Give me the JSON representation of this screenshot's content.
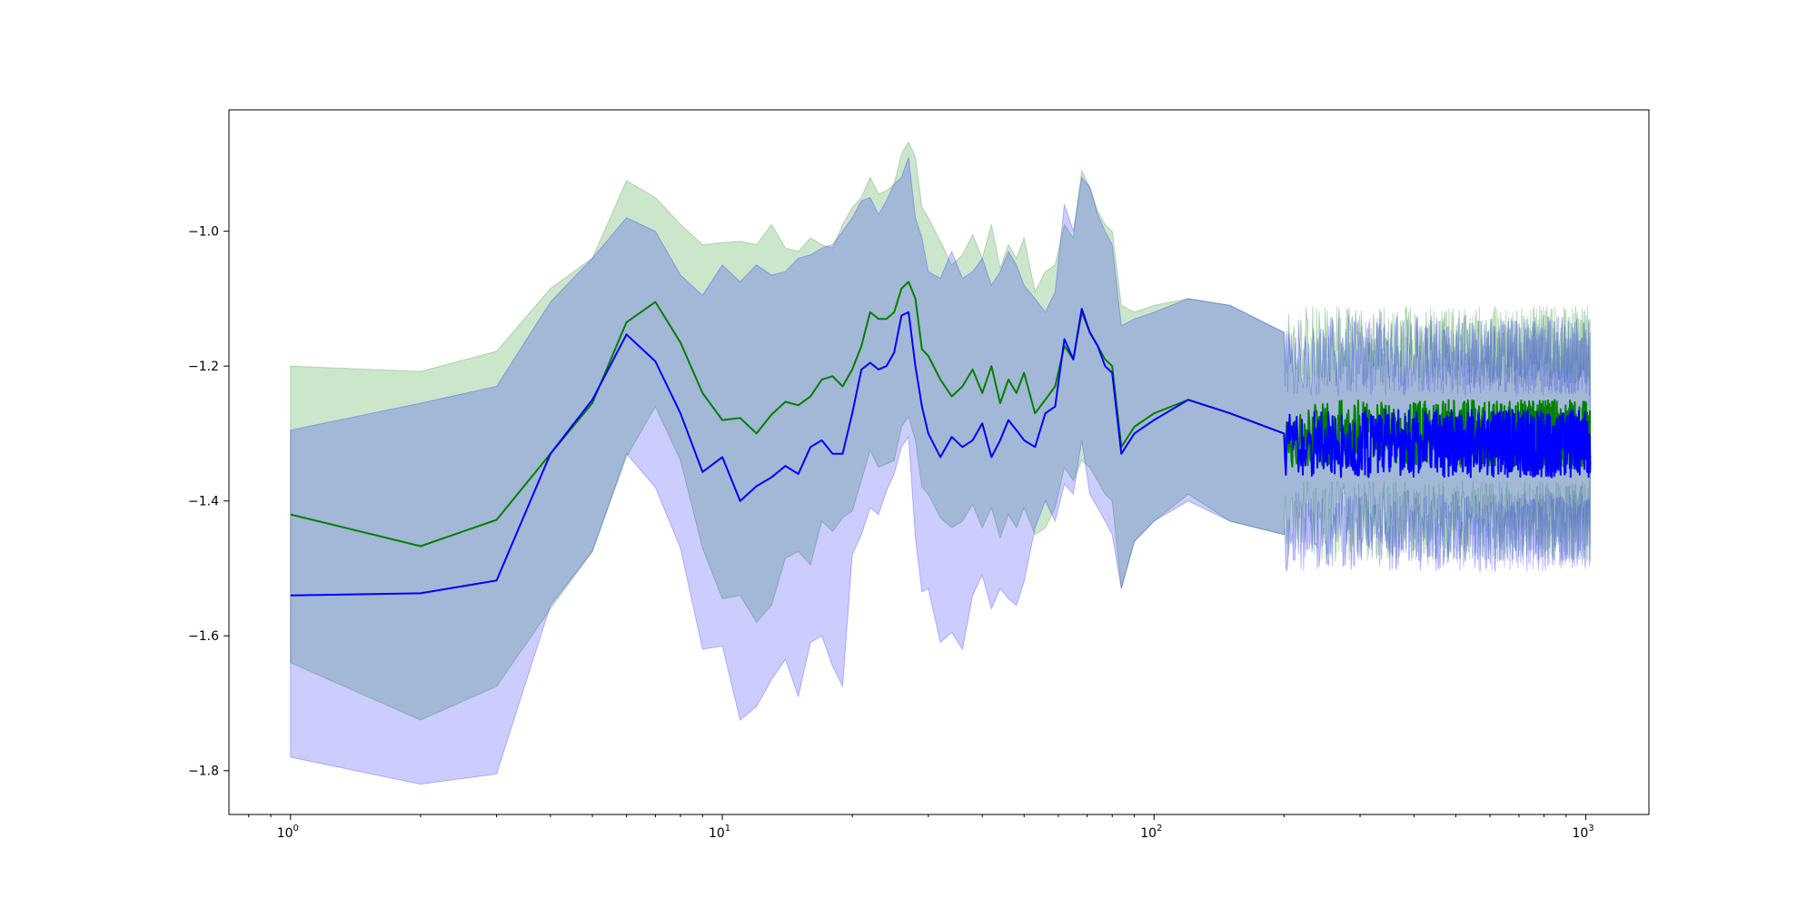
{
  "chart_data": {
    "type": "line",
    "title": "",
    "xlabel": "",
    "ylabel": "",
    "x_scale": "log",
    "xlim": [
      0.72,
      1400
    ],
    "ylim": [
      -1.865,
      -0.82
    ],
    "x_ticks": [
      {
        "value": 1,
        "base": "10",
        "exp": "0"
      },
      {
        "value": 10,
        "base": "10",
        "exp": "1"
      },
      {
        "value": 100,
        "base": "10",
        "exp": "2"
      },
      {
        "value": 1000,
        "base": "10",
        "exp": "3"
      }
    ],
    "y_ticks": [
      {
        "value": -1.0,
        "label": "−1.0"
      },
      {
        "value": -1.2,
        "label": "−1.2"
      },
      {
        "value": -1.4,
        "label": "−1.4"
      },
      {
        "value": -1.6,
        "label": "−1.6"
      },
      {
        "value": -1.8,
        "label": "−1.8"
      }
    ],
    "grid": false,
    "legend": "none",
    "colors": {
      "series_a": "#008000",
      "series_b": "#0000ff",
      "band_a": "#008000",
      "band_b": "#0000ff"
    },
    "series": [
      {
        "color": "#008000",
        "x": [
          1,
          2,
          3,
          4,
          5,
          6,
          7,
          8,
          9,
          10,
          11,
          12,
          13,
          14,
          15,
          16,
          17,
          18,
          19,
          20,
          21,
          22,
          23,
          24,
          25,
          26,
          27,
          28,
          29,
          30,
          32,
          34,
          36,
          38,
          40,
          42,
          44,
          46,
          48,
          50,
          53,
          56,
          59,
          62,
          65,
          68,
          71,
          74,
          77,
          80,
          84,
          90,
          100,
          120,
          150,
          200
        ],
        "values": [
          -1.42,
          -1.467,
          -1.428,
          -1.33,
          -1.255,
          -1.135,
          -1.105,
          -1.165,
          -1.24,
          -1.28,
          -1.277,
          -1.3,
          -1.272,
          -1.253,
          -1.258,
          -1.245,
          -1.22,
          -1.215,
          -1.23,
          -1.205,
          -1.17,
          -1.12,
          -1.13,
          -1.13,
          -1.12,
          -1.085,
          -1.075,
          -1.1,
          -1.175,
          -1.185,
          -1.22,
          -1.245,
          -1.23,
          -1.205,
          -1.24,
          -1.2,
          -1.255,
          -1.22,
          -1.24,
          -1.21,
          -1.27,
          -1.25,
          -1.23,
          -1.17,
          -1.19,
          -1.12,
          -1.15,
          -1.17,
          -1.19,
          -1.2,
          -1.32,
          -1.29,
          -1.27,
          -1.25,
          -1.27,
          -1.3
        ],
        "lower": [
          -1.64,
          -1.725,
          -1.675,
          -1.56,
          -1.475,
          -1.335,
          -1.26,
          -1.34,
          -1.47,
          -1.545,
          -1.54,
          -1.58,
          -1.555,
          -1.485,
          -1.475,
          -1.495,
          -1.43,
          -1.445,
          -1.425,
          -1.415,
          -1.37,
          -1.325,
          -1.35,
          -1.345,
          -1.34,
          -1.29,
          -1.275,
          -1.31,
          -1.38,
          -1.39,
          -1.425,
          -1.44,
          -1.43,
          -1.405,
          -1.44,
          -1.41,
          -1.455,
          -1.42,
          -1.44,
          -1.41,
          -1.45,
          -1.44,
          -1.41,
          -1.35,
          -1.37,
          -1.34,
          -1.35,
          -1.37,
          -1.39,
          -1.4,
          -1.53,
          -1.46,
          -1.43,
          -1.39,
          -1.43,
          -1.45
        ],
        "upper": [
          -1.2,
          -1.208,
          -1.178,
          -1.085,
          -1.04,
          -0.925,
          -0.95,
          -0.99,
          -1.02,
          -1.017,
          -1.015,
          -1.02,
          -0.99,
          -1.025,
          -1.03,
          -1.01,
          -1.02,
          -1.025,
          -0.99,
          -0.965,
          -0.95,
          -0.92,
          -0.945,
          -0.94,
          -0.93,
          -0.885,
          -0.868,
          -0.89,
          -0.965,
          -0.98,
          -1.015,
          -1.05,
          -1.035,
          -1.005,
          -1.04,
          -0.99,
          -1.055,
          -1.02,
          -1.04,
          -1.01,
          -1.09,
          -1.06,
          -1.05,
          -0.99,
          -1.01,
          -0.91,
          -0.935,
          -0.97,
          -0.99,
          -1.0,
          -1.11,
          -1.12,
          -1.11,
          -1.1,
          -1.11,
          -1.15
        ]
      },
      {
        "color": "#0000ff",
        "x": [
          1,
          2,
          3,
          4,
          5,
          6,
          7,
          8,
          9,
          10,
          11,
          12,
          13,
          14,
          15,
          16,
          17,
          18,
          19,
          20,
          21,
          22,
          23,
          24,
          25,
          26,
          27,
          28,
          29,
          30,
          32,
          34,
          36,
          38,
          40,
          42,
          44,
          46,
          48,
          50,
          53,
          56,
          59,
          62,
          65,
          68,
          71,
          74,
          77,
          80,
          84,
          90,
          100,
          120,
          150,
          200
        ],
        "values": [
          -1.54,
          -1.537,
          -1.518,
          -1.33,
          -1.25,
          -1.153,
          -1.193,
          -1.27,
          -1.357,
          -1.335,
          -1.4,
          -1.378,
          -1.365,
          -1.348,
          -1.36,
          -1.32,
          -1.31,
          -1.33,
          -1.33,
          -1.27,
          -1.205,
          -1.195,
          -1.205,
          -1.2,
          -1.18,
          -1.125,
          -1.12,
          -1.2,
          -1.26,
          -1.3,
          -1.335,
          -1.305,
          -1.32,
          -1.31,
          -1.285,
          -1.335,
          -1.31,
          -1.28,
          -1.295,
          -1.31,
          -1.32,
          -1.27,
          -1.26,
          -1.16,
          -1.19,
          -1.115,
          -1.15,
          -1.17,
          -1.2,
          -1.21,
          -1.33,
          -1.3,
          -1.28,
          -1.25,
          -1.27,
          -1.3
        ],
        "lower": [
          -1.78,
          -1.82,
          -1.805,
          -1.555,
          -1.475,
          -1.33,
          -1.38,
          -1.47,
          -1.62,
          -1.615,
          -1.725,
          -1.705,
          -1.665,
          -1.635,
          -1.69,
          -1.61,
          -1.6,
          -1.645,
          -1.675,
          -1.48,
          -1.45,
          -1.41,
          -1.42,
          -1.385,
          -1.36,
          -1.32,
          -1.305,
          -1.455,
          -1.535,
          -1.53,
          -1.61,
          -1.595,
          -1.62,
          -1.54,
          -1.51,
          -1.56,
          -1.53,
          -1.545,
          -1.555,
          -1.52,
          -1.44,
          -1.4,
          -1.43,
          -1.375,
          -1.39,
          -1.31,
          -1.39,
          -1.41,
          -1.43,
          -1.45,
          -1.53,
          -1.46,
          -1.43,
          -1.4,
          -1.43,
          -1.45
        ],
        "upper": [
          -1.295,
          -1.255,
          -1.23,
          -1.105,
          -1.04,
          -0.98,
          -1.0,
          -1.065,
          -1.095,
          -1.05,
          -1.075,
          -1.05,
          -1.065,
          -1.06,
          -1.04,
          -1.035,
          -1.025,
          -1.02,
          -1.0,
          -0.98,
          -0.955,
          -0.95,
          -0.975,
          -0.955,
          -0.93,
          -0.92,
          -0.89,
          -0.98,
          -1.01,
          -1.06,
          -1.07,
          -1.03,
          -1.07,
          -1.06,
          -1.04,
          -1.08,
          -1.06,
          -1.03,
          -1.05,
          -1.08,
          -1.1,
          -1.12,
          -1.09,
          -0.96,
          -1.0,
          -0.92,
          -0.935,
          -0.975,
          -1.0,
          -1.02,
          -1.14,
          -1.13,
          -1.12,
          -1.1,
          -1.11,
          -1.15
        ]
      }
    ],
    "noise_region": {
      "x_start": 200,
      "x_end": 1024,
      "green_center": -1.3,
      "blue_center": -1.315,
      "line_amplitude": 0.05,
      "band_half_width": 0.13,
      "band_amplitude": 0.06
    }
  }
}
